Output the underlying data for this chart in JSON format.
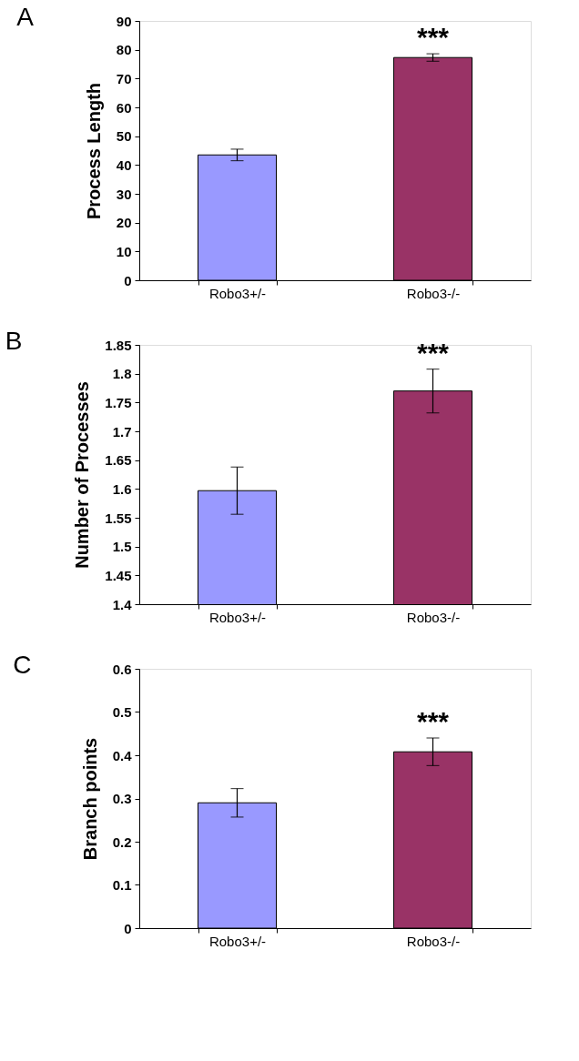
{
  "chart_data": [
    {
      "type": "bar",
      "title": "A",
      "ylabel": "Process Length",
      "categories": [
        "Robo3+/-",
        "Robo3-/-"
      ],
      "values": [
        43.5,
        77.3
      ],
      "errors": [
        2,
        1.3
      ],
      "colors": [
        "#9999ff",
        "#993366"
      ],
      "ylim": [
        0,
        90
      ],
      "yticks": [
        0,
        10,
        20,
        30,
        40,
        50,
        60,
        70,
        80,
        90
      ],
      "grid": false,
      "annotations": [
        "***"
      ]
    },
    {
      "type": "bar",
      "title": "B",
      "ylabel": "Number of Processes",
      "categories": [
        "Robo3+/-",
        "Robo3-/-"
      ],
      "values": [
        1.597,
        1.77
      ],
      "errors": [
        0.041,
        0.038
      ],
      "colors": [
        "#9999ff",
        "#993366"
      ],
      "ylim": [
        1.4,
        1.85
      ],
      "yticks": [
        1.4,
        1.45,
        1.5,
        1.55,
        1.6,
        1.65,
        1.7,
        1.75,
        1.8,
        1.85
      ],
      "grid": false,
      "annotations": [
        "***"
      ]
    },
    {
      "type": "bar",
      "title": "C",
      "ylabel": "Branch points",
      "categories": [
        "Robo3+/-",
        "Robo3-/-"
      ],
      "values": [
        0.29,
        0.408
      ],
      "errors": [
        0.033,
        0.032
      ],
      "colors": [
        "#9999ff",
        "#993366"
      ],
      "ylim": [
        0,
        0.6
      ],
      "yticks": [
        0,
        0.1,
        0.2,
        0.3,
        0.4,
        0.5,
        0.6
      ],
      "grid": false,
      "annotations": [
        "***"
      ]
    }
  ]
}
